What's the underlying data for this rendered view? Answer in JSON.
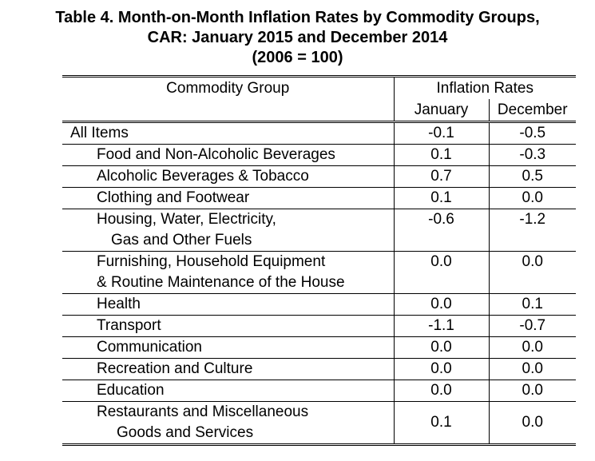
{
  "title": {
    "line1": "Table 4. Month-on-Month Inflation Rates by Commodity Groups,",
    "line2": "CAR: January 2015 and December 2014",
    "line3": "(2006 = 100)"
  },
  "header": {
    "commodity_group": "Commodity Group",
    "inflation_rates": "Inflation Rates",
    "january": "January",
    "december": "December"
  },
  "rows": [
    {
      "label": "All Items",
      "january": "-0.1",
      "december": "-0.5"
    },
    {
      "label": "Food and Non-Alcoholic Beverages",
      "january": "0.1",
      "december": "-0.3"
    },
    {
      "label": "Alcoholic Beverages & Tobacco",
      "january": "0.7",
      "december": "0.5"
    },
    {
      "label": "Clothing and Footwear",
      "january": "0.1",
      "december": "0.0"
    },
    {
      "label": "Housing, Water, Electricity,",
      "label2": "Gas and  Other Fuels",
      "january": "-0.6",
      "december": "-1.2"
    },
    {
      "label": "Furnishing, Household  Equipment",
      "label2": "& Routine Maintenance of the House",
      "january": "0.0",
      "december": "0.0"
    },
    {
      "label": "Health",
      "january": "0.0",
      "december": "0.1"
    },
    {
      "label": "Transport",
      "january": "-1.1",
      "december": "-0.7"
    },
    {
      "label": "Communication",
      "january": "0.0",
      "december": "0.0"
    },
    {
      "label": "Recreation and Culture",
      "january": "0.0",
      "december": "0.0"
    },
    {
      "label": "Education",
      "january": "0.0",
      "december": "0.0"
    },
    {
      "label": "Restaurants and Miscellaneous",
      "label2": "Goods and Services",
      "january": "0.1",
      "december": "0.0"
    }
  ]
}
